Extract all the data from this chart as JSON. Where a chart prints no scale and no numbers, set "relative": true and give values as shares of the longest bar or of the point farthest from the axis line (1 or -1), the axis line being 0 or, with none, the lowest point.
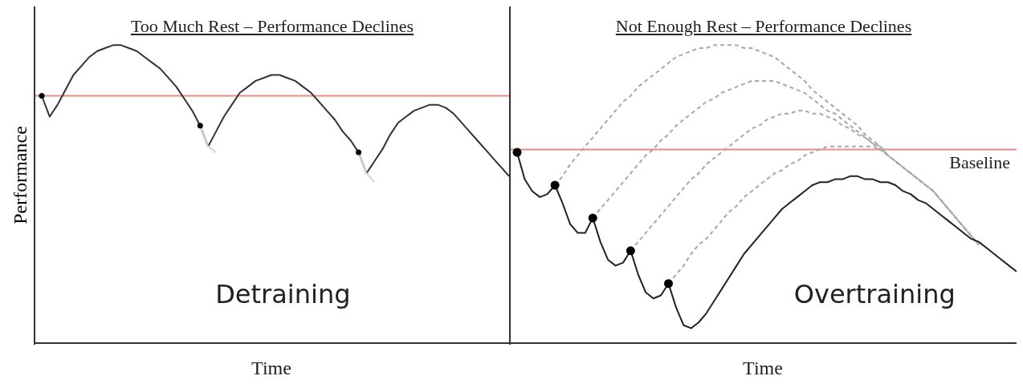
{
  "chart_data": [
    {
      "type": "line",
      "title": "Too Much Rest – Performance Declines",
      "xlabel": "Time",
      "ylabel": "Performance",
      "relative": true,
      "categories": [
        null,
        null,
        null,
        null,
        null,
        null,
        null,
        null,
        null,
        null,
        null,
        null,
        null,
        null,
        null,
        null,
        null,
        null,
        null,
        null,
        null,
        null,
        null,
        null,
        null,
        null,
        null,
        null,
        null,
        null,
        null,
        null,
        null,
        null,
        null,
        null,
        null,
        null,
        null,
        null,
        null,
        null,
        null,
        null,
        null,
        null,
        null,
        null,
        null,
        null,
        null,
        null,
        null,
        null,
        null,
        null,
        null,
        null,
        null,
        null
      ],
      "series": [
        {
          "color": "#333333",
          "line_style": "solid",
          "values": [
            0.83,
            0.76,
            0.8,
            0.85,
            0.9,
            0.93,
            0.96,
            0.98,
            0.99,
            1.0,
            1.0,
            0.99,
            0.98,
            0.96,
            0.94,
            0.92,
            0.89,
            0.86,
            0.82,
            0.78,
            0.73,
            0.66,
            0.71,
            0.76,
            0.8,
            0.84,
            0.86,
            0.88,
            0.89,
            0.9,
            0.9,
            0.89,
            0.88,
            0.86,
            0.84,
            0.81,
            0.78,
            0.75,
            0.71,
            0.68,
            0.64,
            0.57,
            0.61,
            0.65,
            0.7,
            0.74,
            0.76,
            0.78,
            0.79,
            0.8,
            0.8,
            0.79,
            0.77,
            0.74,
            0.71,
            0.68,
            0.65,
            0.62,
            0.59,
            0.56
          ]
        },
        {
          "color": "#d4d4d4",
          "line_style": "solid",
          "values": [
            null,
            null,
            null,
            null,
            null,
            null,
            null,
            null,
            null,
            null,
            null,
            null,
            null,
            null,
            null,
            null,
            null,
            null,
            null,
            null,
            0.73,
            0.66,
            0.64,
            null,
            null,
            null,
            null,
            null,
            null,
            null,
            null,
            null,
            null,
            null,
            null,
            null,
            null,
            null,
            null,
            null,
            null,
            null,
            null,
            null,
            null,
            null,
            null,
            null,
            null,
            null,
            null,
            null,
            null,
            null,
            null,
            null,
            null,
            null,
            null,
            null
          ]
        },
        {
          "color": "#d4d4d4",
          "line_style": "solid",
          "values": [
            null,
            null,
            null,
            null,
            null,
            null,
            null,
            null,
            null,
            null,
            null,
            null,
            null,
            null,
            null,
            null,
            null,
            null,
            null,
            null,
            null,
            null,
            null,
            null,
            null,
            null,
            null,
            null,
            null,
            null,
            null,
            null,
            null,
            null,
            null,
            null,
            null,
            null,
            null,
            null,
            0.64,
            0.57,
            0.54,
            null,
            null,
            null,
            null,
            null,
            null,
            null,
            null,
            null,
            null,
            null,
            null,
            null,
            null,
            null,
            null,
            null
          ]
        }
      ],
      "ref_lines": [
        {
          "axis": "y",
          "value": 0.83,
          "color": "#e88a8a"
        }
      ],
      "annotations": [
        "Detraining"
      ]
    },
    {
      "type": "line",
      "title": "Not Enough Rest – Performance Declines",
      "xlabel": "Time",
      "relative": true,
      "categories": [
        null,
        null,
        null,
        null,
        null,
        null,
        null,
        null,
        null,
        null,
        null,
        null,
        null,
        null,
        null,
        null,
        null,
        null,
        null,
        null,
        null,
        null,
        null,
        null,
        null,
        null,
        null,
        null,
        null,
        null,
        null,
        null,
        null,
        null,
        null,
        null,
        null,
        null,
        null,
        null,
        null,
        null,
        null,
        null,
        null,
        null,
        null,
        null,
        null,
        null,
        null,
        null,
        null,
        null,
        null,
        null,
        null,
        null,
        null,
        null,
        null,
        null,
        null,
        null,
        null,
        null,
        null
      ],
      "series": [
        {
          "color": "#a8a8a8",
          "line_style": "dashed",
          "values": [
            null,
            null,
            null,
            null,
            null,
            0.53,
            0.56,
            0.6,
            0.63,
            0.66,
            0.69,
            0.72,
            0.75,
            0.78,
            0.81,
            0.83,
            0.86,
            0.88,
            0.9,
            0.92,
            0.94,
            0.96,
            0.97,
            0.98,
            0.99,
            0.99,
            1.0,
            1.0,
            1.0,
            1.0,
            0.99,
            0.99,
            0.98,
            0.97,
            0.96,
            0.94,
            0.92,
            0.9,
            0.88,
            0.85,
            0.83,
            0.81,
            0.79,
            0.77,
            0.75,
            0.73,
            0.7,
            0.68,
            0.66,
            0.63,
            0.61,
            0.59,
            0.57,
            0.55,
            0.53,
            0.51,
            0.48,
            0.45,
            0.42,
            0.39,
            0.36,
            0.33,
            null,
            null,
            null,
            null,
            null
          ]
        },
        {
          "color": "#a8a8a8",
          "line_style": "dashed",
          "values": [
            null,
            null,
            null,
            null,
            null,
            null,
            null,
            null,
            null,
            null,
            0.42,
            0.45,
            0.48,
            0.51,
            0.54,
            0.57,
            0.6,
            0.63,
            0.65,
            0.68,
            0.7,
            0.73,
            0.75,
            0.77,
            0.79,
            0.81,
            0.82,
            0.84,
            0.85,
            0.86,
            0.87,
            0.88,
            0.88,
            0.88,
            0.88,
            0.87,
            0.86,
            0.85,
            0.84,
            0.82,
            0.8,
            0.78,
            0.77,
            0.75,
            0.73,
            0.71,
            0.69,
            0.67,
            0.65,
            0.63,
            0.61,
            0.59,
            0.57,
            0.55,
            0.53,
            0.51,
            0.48,
            0.45,
            0.42,
            0.39,
            0.36,
            0.33,
            null,
            null,
            null,
            null,
            null
          ]
        },
        {
          "color": "#a8a8a8",
          "line_style": "dashed",
          "values": [
            null,
            null,
            null,
            null,
            null,
            null,
            null,
            null,
            null,
            null,
            null,
            null,
            null,
            null,
            null,
            0.31,
            0.34,
            0.37,
            0.4,
            0.43,
            0.46,
            0.49,
            0.52,
            0.55,
            0.57,
            0.6,
            0.62,
            0.64,
            0.66,
            0.68,
            0.7,
            0.72,
            0.73,
            0.75,
            0.76,
            0.77,
            0.77,
            0.78,
            0.78,
            0.77,
            0.77,
            0.76,
            0.75,
            0.73,
            0.72,
            0.7,
            0.69,
            0.67,
            0.66,
            0.63,
            0.61,
            0.59,
            0.57,
            0.55,
            0.53,
            0.51,
            0.48,
            0.45,
            0.42,
            0.39,
            0.36,
            0.33,
            null,
            null,
            null,
            null,
            null
          ]
        },
        {
          "color": "#a8a8a8",
          "line_style": "dashed",
          "values": [
            null,
            null,
            null,
            null,
            null,
            null,
            null,
            null,
            null,
            null,
            null,
            null,
            null,
            null,
            null,
            null,
            null,
            null,
            null,
            null,
            0.2,
            0.23,
            0.26,
            0.3,
            0.33,
            0.35,
            0.38,
            0.41,
            0.44,
            0.46,
            0.49,
            0.51,
            0.53,
            0.55,
            0.57,
            0.58,
            0.6,
            0.61,
            0.63,
            0.64,
            0.65,
            0.66,
            0.66,
            0.66,
            0.66,
            0.66,
            0.66,
            0.66,
            0.65,
            0.63,
            0.61,
            0.59,
            0.57,
            0.55,
            0.53,
            0.51,
            0.48,
            0.45,
            0.42,
            0.39,
            0.36,
            0.33,
            null,
            null,
            null,
            null,
            null
          ]
        },
        {
          "color": "#222222",
          "line_style": "solid",
          "values": [
            0.64,
            0.55,
            0.51,
            0.49,
            0.5,
            0.53,
            0.47,
            0.4,
            0.37,
            0.37,
            0.42,
            0.34,
            0.28,
            0.26,
            0.27,
            0.31,
            0.23,
            0.17,
            0.15,
            0.16,
            0.2,
            0.12,
            0.06,
            0.05,
            0.07,
            0.1,
            0.14,
            0.18,
            0.22,
            0.26,
            0.3,
            0.33,
            0.36,
            0.39,
            0.42,
            0.45,
            0.47,
            0.49,
            0.51,
            0.53,
            0.54,
            0.54,
            0.55,
            0.55,
            0.56,
            0.56,
            0.55,
            0.55,
            0.54,
            0.54,
            0.53,
            0.51,
            0.5,
            0.48,
            0.47,
            0.45,
            0.43,
            0.41,
            0.39,
            0.37,
            0.35,
            0.34,
            0.32,
            0.3,
            0.28,
            0.26,
            0.24
          ]
        }
      ],
      "ref_lines": [
        {
          "axis": "y",
          "value": 0.65,
          "label": "Baseline",
          "color": "#e88a8a"
        }
      ],
      "annotations": [
        "Overtraining"
      ]
    }
  ]
}
